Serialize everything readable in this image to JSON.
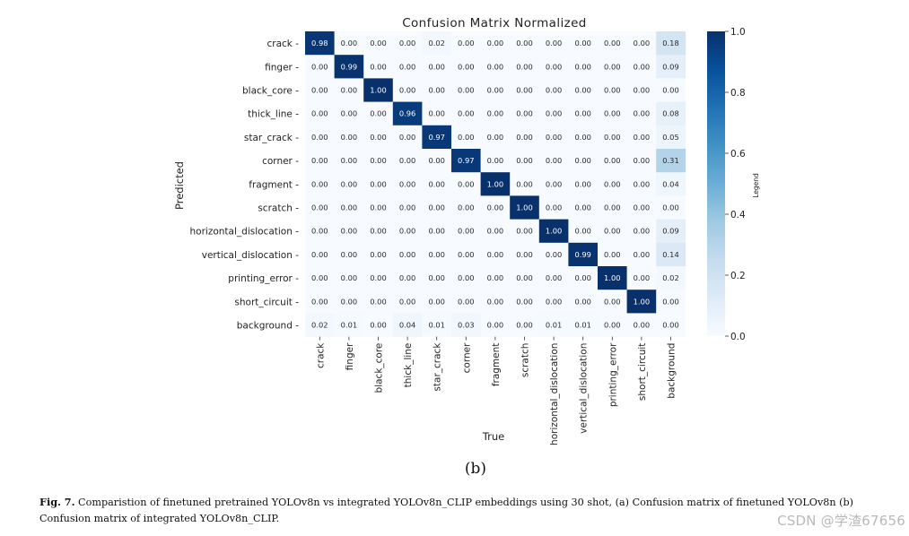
{
  "chart_data": {
    "type": "heatmap",
    "title": "Confusion Matrix Normalized",
    "xlabel": "True",
    "ylabel": "Predicted",
    "colorbar_label": "Legend",
    "colorbar_ticks": [
      "0.0",
      "0.2",
      "0.4",
      "0.6",
      "0.8",
      "1.0"
    ],
    "value_range": [
      0,
      1
    ],
    "colormap": "Blues",
    "row_labels": [
      "crack",
      "finger",
      "black_core",
      "thick_line",
      "star_crack",
      "corner",
      "fragment",
      "scratch",
      "horizontal_dislocation",
      "vertical_dislocation",
      "printing_error",
      "short_circuit",
      "background"
    ],
    "col_labels": [
      "crack",
      "finger",
      "black_core",
      "thick_line",
      "star_crack",
      "corner",
      "fragment",
      "scratch",
      "horizontal_dislocation",
      "vertical_dislocation",
      "printing_error",
      "short_circuit",
      "background"
    ],
    "values": [
      [
        0.98,
        0.0,
        0.0,
        0.0,
        0.02,
        0.0,
        0.0,
        0.0,
        0.0,
        0.0,
        0.0,
        0.0,
        0.18
      ],
      [
        0.0,
        0.99,
        0.0,
        0.0,
        0.0,
        0.0,
        0.0,
        0.0,
        0.0,
        0.0,
        0.0,
        0.0,
        0.09
      ],
      [
        0.0,
        0.0,
        1.0,
        0.0,
        0.0,
        0.0,
        0.0,
        0.0,
        0.0,
        0.0,
        0.0,
        0.0,
        0.0
      ],
      [
        0.0,
        0.0,
        0.0,
        0.96,
        0.0,
        0.0,
        0.0,
        0.0,
        0.0,
        0.0,
        0.0,
        0.0,
        0.08
      ],
      [
        0.0,
        0.0,
        0.0,
        0.0,
        0.97,
        0.0,
        0.0,
        0.0,
        0.0,
        0.0,
        0.0,
        0.0,
        0.05
      ],
      [
        0.0,
        0.0,
        0.0,
        0.0,
        0.0,
        0.97,
        0.0,
        0.0,
        0.0,
        0.0,
        0.0,
        0.0,
        0.31
      ],
      [
        0.0,
        0.0,
        0.0,
        0.0,
        0.0,
        0.0,
        1.0,
        0.0,
        0.0,
        0.0,
        0.0,
        0.0,
        0.04
      ],
      [
        0.0,
        0.0,
        0.0,
        0.0,
        0.0,
        0.0,
        0.0,
        1.0,
        0.0,
        0.0,
        0.0,
        0.0,
        0.0
      ],
      [
        0.0,
        0.0,
        0.0,
        0.0,
        0.0,
        0.0,
        0.0,
        0.0,
        1.0,
        0.0,
        0.0,
        0.0,
        0.09
      ],
      [
        0.0,
        0.0,
        0.0,
        0.0,
        0.0,
        0.0,
        0.0,
        0.0,
        0.0,
        0.99,
        0.0,
        0.0,
        0.14
      ],
      [
        0.0,
        0.0,
        0.0,
        0.0,
        0.0,
        0.0,
        0.0,
        0.0,
        0.0,
        0.0,
        1.0,
        0.0,
        0.02
      ],
      [
        0.0,
        0.0,
        0.0,
        0.0,
        0.0,
        0.0,
        0.0,
        0.0,
        0.0,
        0.0,
        0.0,
        1.0,
        0.0
      ],
      [
        0.02,
        0.01,
        0.0,
        0.04,
        0.01,
        0.03,
        0.0,
        0.0,
        0.01,
        0.01,
        0.0,
        0.0,
        0.0
      ]
    ]
  },
  "figure": {
    "sub_label": "(b)",
    "caption_ref": "Fig. 7.",
    "caption_text": "Comparistion of finetuned pretrained YOLOv8n vs integrated YOLOv8n_CLIP embeddings using 30 shot, (a) Confusion matrix of finetuned YOLOv8n (b) Confusion matrix of integrated YOLOv8n_CLIP."
  },
  "watermark": "CSDN @学渣67656"
}
